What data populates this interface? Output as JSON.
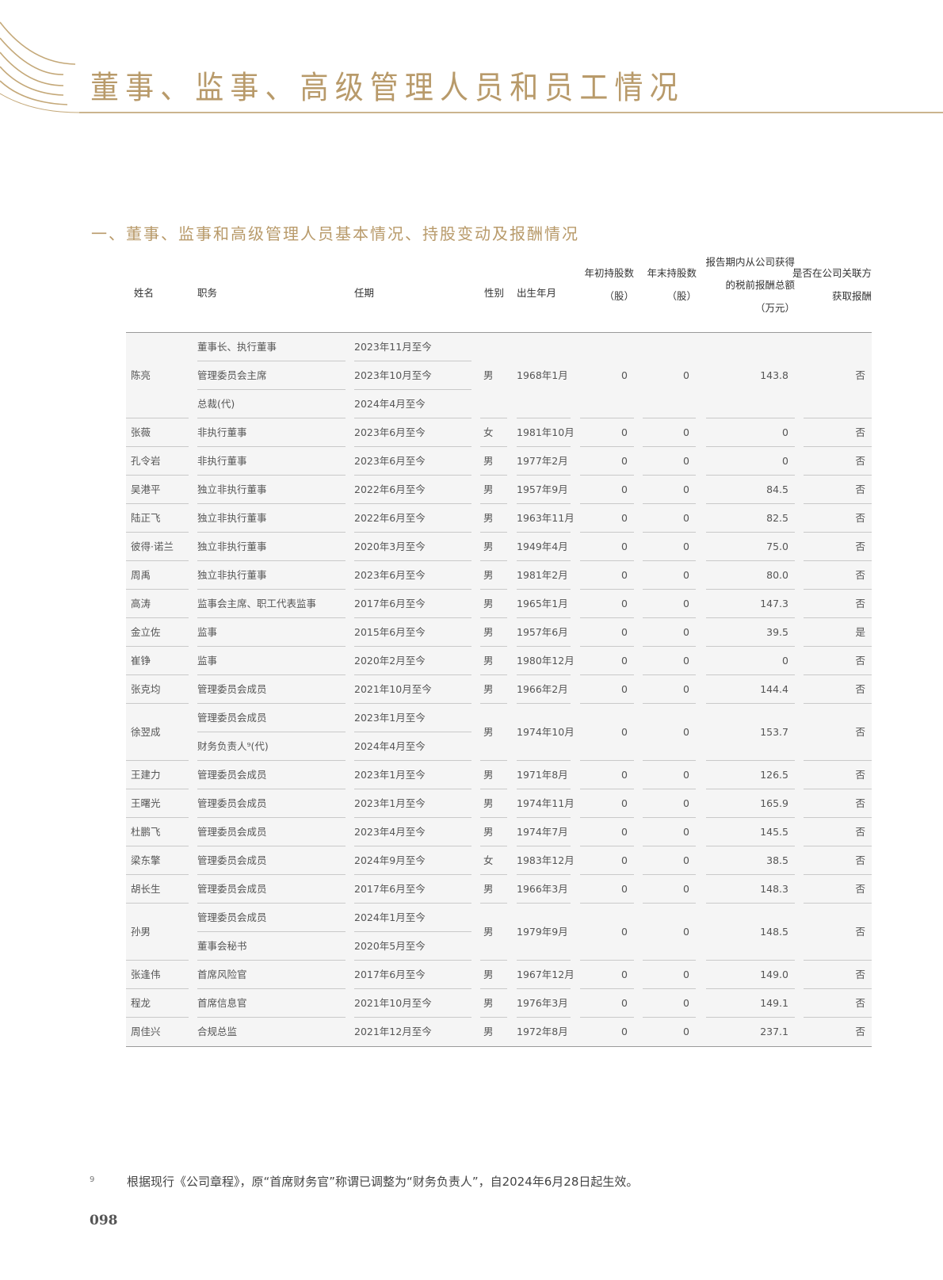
{
  "header": {
    "title": "董事、监事、高级管理人员和员工情况",
    "accent_color": "#b89a6a"
  },
  "section": {
    "title": "一、董事、监事和高级管理人员基本情况、持股变动及报酬情况"
  },
  "table": {
    "columns": {
      "name": "姓名",
      "position": "职务",
      "term": "任期",
      "gender": "性别",
      "birth": "出生年月",
      "start_shares": "年初持股数\n（股）",
      "end_shares": "年末持股数\n（股）",
      "compensation": "报告期内从公司获得\n的税前报酬总额\n（万元）",
      "related": "是否在公司关联方\n获取报酬"
    },
    "rows": [
      {
        "name": "陈亮",
        "roles": [
          {
            "title": "董事长、执行董事",
            "term": "2023年11月至今"
          },
          {
            "title": "管理委员会主席",
            "term": "2023年10月至今"
          },
          {
            "title": "总裁(代)",
            "term": "2024年4月至今"
          }
        ],
        "gender": "男",
        "birth": "1968年1月",
        "start": "0",
        "end": "0",
        "comp": "143.8",
        "related": "否"
      },
      {
        "name": "张薇",
        "roles": [
          {
            "title": "非执行董事",
            "term": "2023年6月至今"
          }
        ],
        "gender": "女",
        "birth": "1981年10月",
        "start": "0",
        "end": "0",
        "comp": "0",
        "related": "否"
      },
      {
        "name": "孔令岩",
        "roles": [
          {
            "title": "非执行董事",
            "term": "2023年6月至今"
          }
        ],
        "gender": "男",
        "birth": "1977年2月",
        "start": "0",
        "end": "0",
        "comp": "0",
        "related": "否"
      },
      {
        "name": "吴港平",
        "roles": [
          {
            "title": "独立非执行董事",
            "term": "2022年6月至今"
          }
        ],
        "gender": "男",
        "birth": "1957年9月",
        "start": "0",
        "end": "0",
        "comp": "84.5",
        "related": "否"
      },
      {
        "name": "陆正飞",
        "roles": [
          {
            "title": "独立非执行董事",
            "term": "2022年6月至今"
          }
        ],
        "gender": "男",
        "birth": "1963年11月",
        "start": "0",
        "end": "0",
        "comp": "82.5",
        "related": "否"
      },
      {
        "name": "彼得·诺兰",
        "roles": [
          {
            "title": "独立非执行董事",
            "term": "2020年3月至今"
          }
        ],
        "gender": "男",
        "birth": "1949年4月",
        "start": "0",
        "end": "0",
        "comp": "75.0",
        "related": "否"
      },
      {
        "name": "周禹",
        "roles": [
          {
            "title": "独立非执行董事",
            "term": "2023年6月至今"
          }
        ],
        "gender": "男",
        "birth": "1981年2月",
        "start": "0",
        "end": "0",
        "comp": "80.0",
        "related": "否"
      },
      {
        "name": "高涛",
        "roles": [
          {
            "title": "监事会主席、职工代表监事",
            "term": "2017年6月至今"
          }
        ],
        "gender": "男",
        "birth": "1965年1月",
        "start": "0",
        "end": "0",
        "comp": "147.3",
        "related": "否"
      },
      {
        "name": "金立佐",
        "roles": [
          {
            "title": "监事",
            "term": "2015年6月至今"
          }
        ],
        "gender": "男",
        "birth": "1957年6月",
        "start": "0",
        "end": "0",
        "comp": "39.5",
        "related": "是"
      },
      {
        "name": "崔铮",
        "roles": [
          {
            "title": "监事",
            "term": "2020年2月至今"
          }
        ],
        "gender": "男",
        "birth": "1980年12月",
        "start": "0",
        "end": "0",
        "comp": "0",
        "related": "否"
      },
      {
        "name": "张克均",
        "roles": [
          {
            "title": "管理委员会成员",
            "term": "2021年10月至今"
          }
        ],
        "gender": "男",
        "birth": "1966年2月",
        "start": "0",
        "end": "0",
        "comp": "144.4",
        "related": "否"
      },
      {
        "name": "徐翌成",
        "roles": [
          {
            "title": "管理委员会成员",
            "term": "2023年1月至今"
          },
          {
            "title": "财务负责人⁹(代)",
            "term": "2024年4月至今"
          }
        ],
        "gender": "男",
        "birth": "1974年10月",
        "start": "0",
        "end": "0",
        "comp": "153.7",
        "related": "否"
      },
      {
        "name": "王建力",
        "roles": [
          {
            "title": "管理委员会成员",
            "term": "2023年1月至今"
          }
        ],
        "gender": "男",
        "birth": "1971年8月",
        "start": "0",
        "end": "0",
        "comp": "126.5",
        "related": "否"
      },
      {
        "name": "王曙光",
        "roles": [
          {
            "title": "管理委员会成员",
            "term": "2023年1月至今"
          }
        ],
        "gender": "男",
        "birth": "1974年11月",
        "start": "0",
        "end": "0",
        "comp": "165.9",
        "related": "否"
      },
      {
        "name": "杜鹏飞",
        "roles": [
          {
            "title": "管理委员会成员",
            "term": "2023年4月至今"
          }
        ],
        "gender": "男",
        "birth": "1974年7月",
        "start": "0",
        "end": "0",
        "comp": "145.5",
        "related": "否"
      },
      {
        "name": "梁东擎",
        "roles": [
          {
            "title": "管理委员会成员",
            "term": "2024年9月至今"
          }
        ],
        "gender": "女",
        "birth": "1983年12月",
        "start": "0",
        "end": "0",
        "comp": "38.5",
        "related": "否"
      },
      {
        "name": "胡长生",
        "roles": [
          {
            "title": "管理委员会成员",
            "term": "2017年6月至今"
          }
        ],
        "gender": "男",
        "birth": "1966年3月",
        "start": "0",
        "end": "0",
        "comp": "148.3",
        "related": "否"
      },
      {
        "name": "孙男",
        "roles": [
          {
            "title": "管理委员会成员",
            "term": "2024年1月至今"
          },
          {
            "title": "董事会秘书",
            "term": "2020年5月至今"
          }
        ],
        "gender": "男",
        "birth": "1979年9月",
        "start": "0",
        "end": "0",
        "comp": "148.5",
        "related": "否"
      },
      {
        "name": "张逢伟",
        "roles": [
          {
            "title": "首席风险官",
            "term": "2017年6月至今"
          }
        ],
        "gender": "男",
        "birth": "1967年12月",
        "start": "0",
        "end": "0",
        "comp": "149.0",
        "related": "否"
      },
      {
        "name": "程龙",
        "roles": [
          {
            "title": "首席信息官",
            "term": "2021年10月至今"
          }
        ],
        "gender": "男",
        "birth": "1976年3月",
        "start": "0",
        "end": "0",
        "comp": "149.1",
        "related": "否"
      },
      {
        "name": "周佳兴",
        "roles": [
          {
            "title": "合规总监",
            "term": "2021年12月至今"
          }
        ],
        "gender": "男",
        "birth": "1972年8月",
        "start": "0",
        "end": "0",
        "comp": "237.1",
        "related": "否"
      }
    ]
  },
  "footnote": {
    "mark": "9",
    "text": "根据现行《公司章程》，原“首席财务官”称谓已调整为“财务负责人”，自2024年6月28日起生效。"
  },
  "page_number": "098"
}
